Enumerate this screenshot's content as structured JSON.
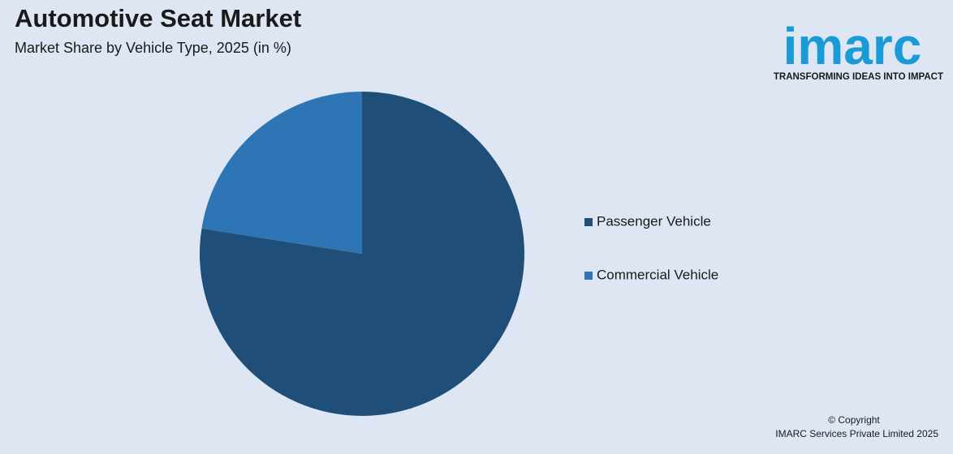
{
  "chart_data": {
    "type": "pie",
    "title": "Automotive Seat Market",
    "subtitle": "Market Share by Vehicle Type, 2025 (in %)",
    "categories": [
      "Passenger Vehicle",
      "Commercial Vehicle"
    ],
    "values": [
      77.5,
      22.5
    ],
    "colors": [
      "#1f4e79",
      "#2e75b6"
    ],
    "legend": "right"
  },
  "logo": {
    "name": "imarc",
    "tagline": "TRANSFORMING IDEAS INTO IMPACT"
  },
  "footer": {
    "line1": "© Copyright",
    "line2": "IMARC Services Private Limited 2025"
  }
}
